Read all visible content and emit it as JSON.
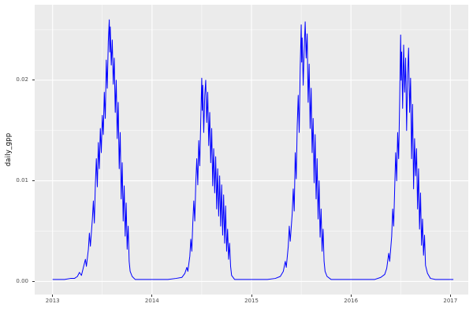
{
  "chart_data": {
    "type": "line",
    "ylabel": "daily_gpp",
    "xlabel": "",
    "legend": "none",
    "grid": "on",
    "xlim": [
      2012.82,
      2017.18
    ],
    "ylim": [
      -0.0013,
      0.0275
    ],
    "x_major_ticks": [
      2013,
      2014,
      2015,
      2016,
      2017
    ],
    "x_tick_labels": [
      "2013",
      "2014",
      "2015",
      "2016",
      "2017"
    ],
    "x_minor_ticks": [
      2013.5,
      2014.5,
      2015.5,
      2016.5
    ],
    "y_major_ticks": [
      0.0,
      0.01,
      0.02
    ],
    "y_tick_labels": [
      "0.00",
      "0.01",
      "0.02"
    ],
    "y_minor_ticks": [
      0.005,
      0.015,
      0.025
    ],
    "colors": {
      "line": "#0000ff",
      "panel_bg": "#ebebeb",
      "grid_major": "#ffffff",
      "grid_minor": "#ffffff",
      "tick_mark": "#333333",
      "tick_text": "#4d4d4d"
    },
    "points": [
      [
        2013.0,
        0.0002
      ],
      [
        2013.06,
        0.0002
      ],
      [
        2013.12,
        0.0002
      ],
      [
        2013.18,
        0.0003
      ],
      [
        2013.22,
        0.0003
      ],
      [
        2013.25,
        0.0005
      ],
      [
        2013.27,
        0.0009
      ],
      [
        2013.29,
        0.0006
      ],
      [
        2013.31,
        0.0014
      ],
      [
        2013.33,
        0.0022
      ],
      [
        2013.34,
        0.0015
      ],
      [
        2013.36,
        0.0032
      ],
      [
        2013.37,
        0.0048
      ],
      [
        2013.38,
        0.0035
      ],
      [
        2013.4,
        0.0062
      ],
      [
        2013.41,
        0.008
      ],
      [
        2013.42,
        0.0058
      ],
      [
        2013.43,
        0.0096
      ],
      [
        2013.44,
        0.0122
      ],
      [
        2013.45,
        0.0094
      ],
      [
        2013.46,
        0.0138
      ],
      [
        2013.47,
        0.0112
      ],
      [
        2013.48,
        0.0152
      ],
      [
        2013.49,
        0.0128
      ],
      [
        2013.5,
        0.0165
      ],
      [
        2013.51,
        0.0146
      ],
      [
        2013.52,
        0.0188
      ],
      [
        2013.53,
        0.0162
      ],
      [
        2013.54,
        0.022
      ],
      [
        2013.55,
        0.0192
      ],
      [
        2013.56,
        0.0238
      ],
      [
        2013.57,
        0.026
      ],
      [
        2013.575,
        0.0228
      ],
      [
        2013.58,
        0.0253
      ],
      [
        2013.59,
        0.0215
      ],
      [
        2013.6,
        0.024
      ],
      [
        2013.61,
        0.0196
      ],
      [
        2013.62,
        0.0222
      ],
      [
        2013.63,
        0.0168
      ],
      [
        2013.64,
        0.02
      ],
      [
        2013.65,
        0.0142
      ],
      [
        2013.66,
        0.0178
      ],
      [
        2013.67,
        0.0112
      ],
      [
        2013.68,
        0.0148
      ],
      [
        2013.69,
        0.0082
      ],
      [
        2013.7,
        0.0118
      ],
      [
        2013.71,
        0.006
      ],
      [
        2013.72,
        0.0095
      ],
      [
        2013.73,
        0.0045
      ],
      [
        2013.74,
        0.0078
      ],
      [
        2013.75,
        0.0032
      ],
      [
        2013.76,
        0.0055
      ],
      [
        2013.77,
        0.002
      ],
      [
        2013.78,
        0.001
      ],
      [
        2013.8,
        0.0005
      ],
      [
        2013.83,
        0.0002
      ],
      [
        2013.88,
        0.0002
      ],
      [
        2013.94,
        0.0002
      ],
      [
        2014.0,
        0.0002
      ],
      [
        2014.08,
        0.0002
      ],
      [
        2014.16,
        0.0002
      ],
      [
        2014.24,
        0.0003
      ],
      [
        2014.3,
        0.0004
      ],
      [
        2014.33,
        0.0008
      ],
      [
        2014.35,
        0.0014
      ],
      [
        2014.36,
        0.001
      ],
      [
        2014.38,
        0.0025
      ],
      [
        2014.39,
        0.0042
      ],
      [
        2014.4,
        0.003
      ],
      [
        2014.41,
        0.0058
      ],
      [
        2014.42,
        0.008
      ],
      [
        2014.43,
        0.006
      ],
      [
        2014.44,
        0.0098
      ],
      [
        2014.45,
        0.0122
      ],
      [
        2014.46,
        0.0096
      ],
      [
        2014.47,
        0.014
      ],
      [
        2014.48,
        0.0115
      ],
      [
        2014.49,
        0.016
      ],
      [
        2014.5,
        0.0202
      ],
      [
        2014.505,
        0.017
      ],
      [
        2014.51,
        0.0195
      ],
      [
        2014.52,
        0.0148
      ],
      [
        2014.53,
        0.0185
      ],
      [
        2014.54,
        0.02
      ],
      [
        2014.55,
        0.0158
      ],
      [
        2014.56,
        0.0188
      ],
      [
        2014.57,
        0.0135
      ],
      [
        2014.58,
        0.0168
      ],
      [
        2014.59,
        0.0118
      ],
      [
        2014.6,
        0.0152
      ],
      [
        2014.61,
        0.0095
      ],
      [
        2014.62,
        0.0132
      ],
      [
        2014.63,
        0.0088
      ],
      [
        2014.64,
        0.0124
      ],
      [
        2014.65,
        0.0072
      ],
      [
        2014.66,
        0.0112
      ],
      [
        2014.67,
        0.0065
      ],
      [
        2014.68,
        0.0105
      ],
      [
        2014.69,
        0.0055
      ],
      [
        2014.7,
        0.0096
      ],
      [
        2014.71,
        0.0046
      ],
      [
        2014.72,
        0.0086
      ],
      [
        2014.73,
        0.0038
      ],
      [
        2014.74,
        0.0075
      ],
      [
        2014.75,
        0.003
      ],
      [
        2014.76,
        0.0052
      ],
      [
        2014.77,
        0.0022
      ],
      [
        2014.78,
        0.0038
      ],
      [
        2014.79,
        0.0015
      ],
      [
        2014.8,
        0.0006
      ],
      [
        2014.83,
        0.0002
      ],
      [
        2014.88,
        0.0002
      ],
      [
        2014.94,
        0.0002
      ],
      [
        2015.0,
        0.0002
      ],
      [
        2015.08,
        0.0002
      ],
      [
        2015.16,
        0.0002
      ],
      [
        2015.24,
        0.0003
      ],
      [
        2015.29,
        0.0005
      ],
      [
        2015.32,
        0.001
      ],
      [
        2015.34,
        0.002
      ],
      [
        2015.35,
        0.0014
      ],
      [
        2015.37,
        0.0035
      ],
      [
        2015.38,
        0.0055
      ],
      [
        2015.39,
        0.004
      ],
      [
        2015.41,
        0.0068
      ],
      [
        2015.42,
        0.0092
      ],
      [
        2015.43,
        0.007
      ],
      [
        2015.44,
        0.0128
      ],
      [
        2015.45,
        0.0102
      ],
      [
        2015.46,
        0.0155
      ],
      [
        2015.47,
        0.0185
      ],
      [
        2015.48,
        0.0148
      ],
      [
        2015.49,
        0.0212
      ],
      [
        2015.5,
        0.0255
      ],
      [
        2015.505,
        0.0218
      ],
      [
        2015.51,
        0.0242
      ],
      [
        2015.52,
        0.0195
      ],
      [
        2015.53,
        0.023
      ],
      [
        2015.54,
        0.0258
      ],
      [
        2015.55,
        0.0222
      ],
      [
        2015.56,
        0.0246
      ],
      [
        2015.57,
        0.0178
      ],
      [
        2015.58,
        0.0216
      ],
      [
        2015.59,
        0.0152
      ],
      [
        2015.6,
        0.0192
      ],
      [
        2015.61,
        0.0128
      ],
      [
        2015.62,
        0.0162
      ],
      [
        2015.63,
        0.0098
      ],
      [
        2015.64,
        0.0146
      ],
      [
        2015.65,
        0.0082
      ],
      [
        2015.66,
        0.0122
      ],
      [
        2015.67,
        0.0062
      ],
      [
        2015.68,
        0.01
      ],
      [
        2015.69,
        0.0044
      ],
      [
        2015.7,
        0.0072
      ],
      [
        2015.71,
        0.003
      ],
      [
        2015.72,
        0.0052
      ],
      [
        2015.73,
        0.002
      ],
      [
        2015.74,
        0.001
      ],
      [
        2015.76,
        0.0005
      ],
      [
        2015.8,
        0.0002
      ],
      [
        2015.86,
        0.0002
      ],
      [
        2015.93,
        0.0002
      ],
      [
        2016.0,
        0.0002
      ],
      [
        2016.08,
        0.0002
      ],
      [
        2016.16,
        0.0002
      ],
      [
        2016.24,
        0.0002
      ],
      [
        2016.3,
        0.0004
      ],
      [
        2016.34,
        0.0007
      ],
      [
        2016.36,
        0.0013
      ],
      [
        2016.38,
        0.0028
      ],
      [
        2016.39,
        0.002
      ],
      [
        2016.41,
        0.0045
      ],
      [
        2016.42,
        0.0072
      ],
      [
        2016.43,
        0.0055
      ],
      [
        2016.44,
        0.0092
      ],
      [
        2016.45,
        0.0128
      ],
      [
        2016.46,
        0.01
      ],
      [
        2016.47,
        0.0148
      ],
      [
        2016.48,
        0.0122
      ],
      [
        2016.49,
        0.0178
      ],
      [
        2016.5,
        0.0245
      ],
      [
        2016.505,
        0.02
      ],
      [
        2016.51,
        0.0228
      ],
      [
        2016.52,
        0.0172
      ],
      [
        2016.53,
        0.0235
      ],
      [
        2016.54,
        0.0188
      ],
      [
        2016.55,
        0.0222
      ],
      [
        2016.56,
        0.015
      ],
      [
        2016.57,
        0.0205
      ],
      [
        2016.58,
        0.0232
      ],
      [
        2016.59,
        0.0168
      ],
      [
        2016.6,
        0.0202
      ],
      [
        2016.61,
        0.0122
      ],
      [
        2016.62,
        0.0176
      ],
      [
        2016.63,
        0.0092
      ],
      [
        2016.64,
        0.0142
      ],
      [
        2016.65,
        0.0105
      ],
      [
        2016.66,
        0.0132
      ],
      [
        2016.67,
        0.0072
      ],
      [
        2016.68,
        0.0112
      ],
      [
        2016.69,
        0.0052
      ],
      [
        2016.7,
        0.0088
      ],
      [
        2016.71,
        0.0036
      ],
      [
        2016.72,
        0.0062
      ],
      [
        2016.73,
        0.0026
      ],
      [
        2016.74,
        0.0046
      ],
      [
        2016.75,
        0.0016
      ],
      [
        2016.77,
        0.0008
      ],
      [
        2016.8,
        0.0003
      ],
      [
        2016.85,
        0.0002
      ],
      [
        2016.92,
        0.0002
      ],
      [
        2017.0,
        0.0002
      ],
      [
        2017.03,
        0.0002
      ]
    ]
  }
}
